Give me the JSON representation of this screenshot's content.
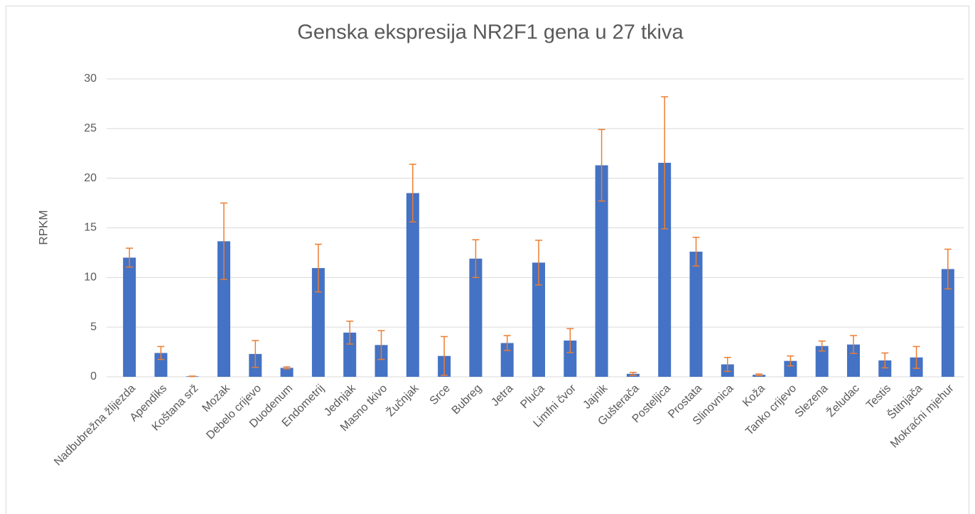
{
  "chart_data": {
    "type": "bar",
    "title": "Genska ekspresija NR2F1 gena u 27 tkiva",
    "y_label": "RPKM",
    "categories": [
      "Nadbubrežna žlijezda",
      "Apendiks",
      "Koštana srž",
      "Mozak",
      "Debelo crijevo",
      "Duodenum",
      "Endometrij",
      "Jednjak",
      "Masno tkivo",
      "Žučnjak",
      "Srce",
      "Bubreg",
      "Jetra",
      "Pluća",
      "Limfni čvor",
      "Jajnik",
      "Gušterača",
      "Posteljica",
      "Prostata",
      "Slinovnica",
      "Koža",
      "Tanko crijevo",
      "Slezena",
      "Želudac",
      "Testis",
      "Štitnjača",
      "Mokraćni mjehur"
    ],
    "values": [
      12.0,
      2.4,
      0.05,
      13.65,
      2.3,
      0.9,
      10.95,
      4.45,
      3.2,
      18.5,
      2.1,
      11.9,
      3.4,
      11.5,
      3.65,
      21.3,
      0.3,
      21.55,
      12.6,
      1.25,
      0.2,
      1.6,
      3.1,
      3.25,
      1.65,
      1.95,
      10.85
    ],
    "errors": [
      0.95,
      0.65,
      0.02,
      3.85,
      1.35,
      0.1,
      2.4,
      1.15,
      1.45,
      2.9,
      1.95,
      1.9,
      0.75,
      2.25,
      1.2,
      3.6,
      0.15,
      6.65,
      1.45,
      0.7,
      0.08,
      0.5,
      0.5,
      0.9,
      0.75,
      1.1,
      2.0
    ],
    "color": "#4472c4",
    "error_color": "#ed7d31",
    "ylim": [
      0,
      30
    ],
    "yticks": [
      0,
      5,
      10,
      15,
      20,
      25,
      30
    ],
    "grid": true
  }
}
